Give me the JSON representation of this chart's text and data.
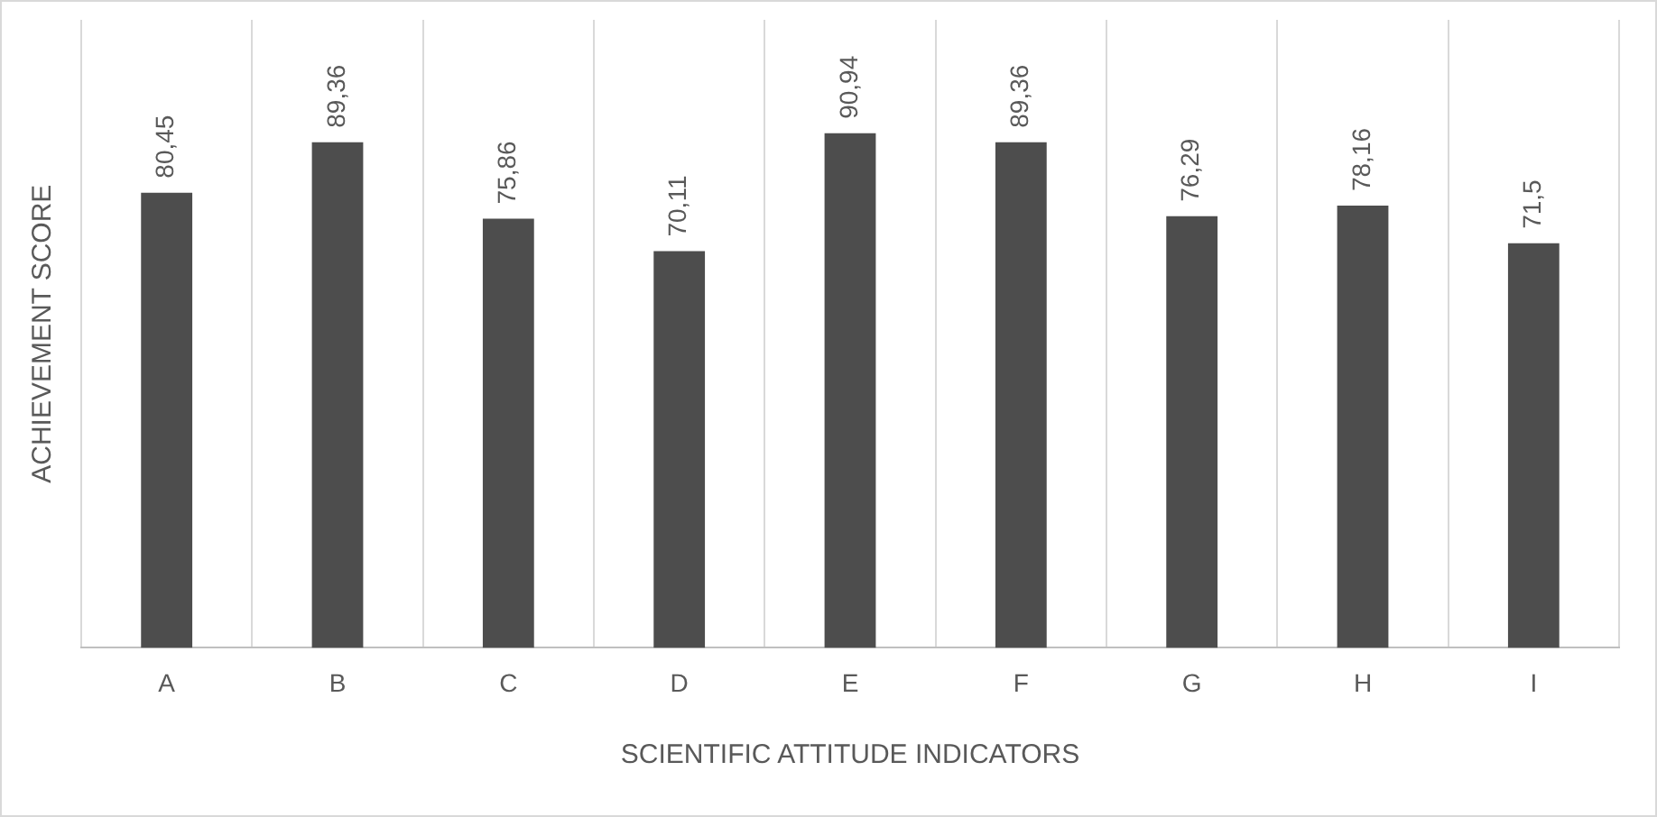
{
  "chart_data": {
    "type": "bar",
    "xlabel": "SCIENTIFIC ATTITUDE INDICATORS",
    "ylabel": "ACHIEVEMENT SCORE",
    "categories": [
      "A",
      "B",
      "C",
      "D",
      "E",
      "F",
      "G",
      "H",
      "I"
    ],
    "values": [
      80.45,
      89.36,
      75.86,
      70.11,
      90.94,
      89.36,
      76.29,
      78.16,
      71.5
    ],
    "value_labels": [
      "80,45",
      "89,36",
      "75,86",
      "70,11",
      "90,94",
      "89,36",
      "76,29",
      "78,16",
      "71,5"
    ],
    "color": "#4d4d4d",
    "grid": "x",
    "legend": false
  }
}
